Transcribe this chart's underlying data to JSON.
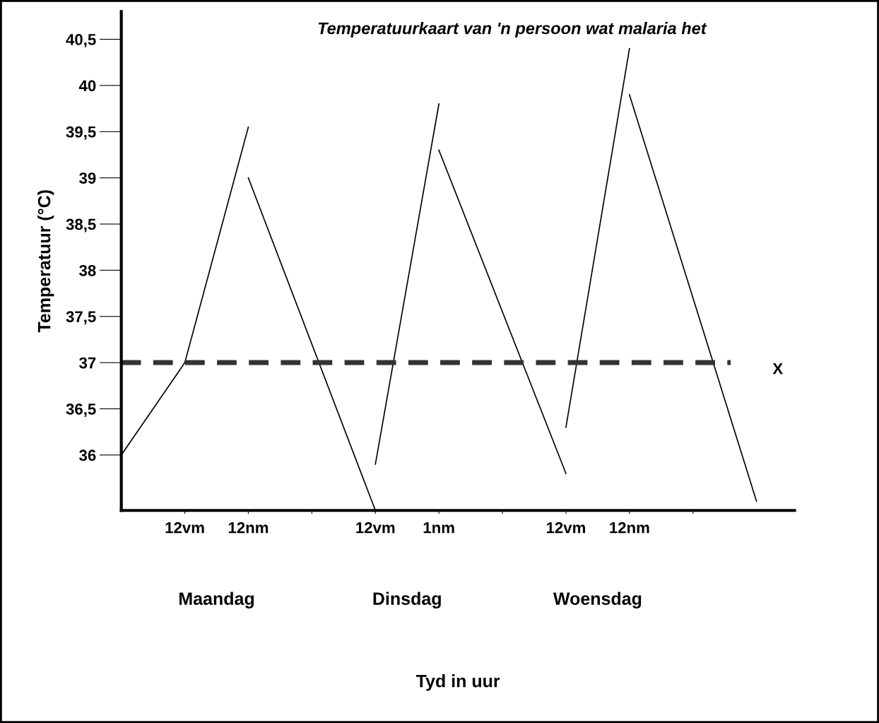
{
  "chart_data": {
    "type": "line",
    "title": "Temperatuurkaart van 'n persoon wat malaria het",
    "ylabel": "Temperatuur (°C)",
    "categories": [
      null,
      "12vm",
      "12nm",
      null,
      "12vm",
      "1nm",
      null,
      "12vm",
      "12nm",
      null,
      null
    ],
    "series": [
      {
        "color": "#000000",
        "values": [
          36.0,
          37.0,
          39.55,
          null,
          null,
          null,
          null,
          null,
          null,
          null,
          null
        ]
      },
      {
        "color": "#000000",
        "values": [
          null,
          null,
          39.0,
          null,
          35.4,
          null,
          null,
          null,
          null,
          null,
          null
        ]
      },
      {
        "color": "#000000",
        "values": [
          null,
          null,
          null,
          null,
          35.9,
          39.8,
          null,
          null,
          null,
          null,
          null
        ]
      },
      {
        "color": "#000000",
        "values": [
          null,
          null,
          null,
          null,
          null,
          39.3,
          null,
          35.8,
          null,
          null,
          null
        ]
      },
      {
        "color": "#000000",
        "values": [
          null,
          null,
          null,
          null,
          null,
          null,
          null,
          36.3,
          40.4,
          null,
          null
        ]
      },
      {
        "color": "#000000",
        "values": [
          null,
          null,
          null,
          null,
          null,
          null,
          null,
          null,
          39.9,
          null,
          35.5
        ]
      }
    ],
    "annotations": [
      "Maandag",
      "Dinsdag",
      "Woensdag",
      "Tyd in uur"
    ],
    "ylim": [
      35.4,
      40.8
    ],
    "yticks": [
      {
        "value": 36,
        "label": "36"
      },
      {
        "value": 36.5,
        "label": "36,5"
      },
      {
        "value": 37,
        "label": "37"
      },
      {
        "value": 37.5,
        "label": "37,5"
      },
      {
        "value": 38,
        "label": "38"
      },
      {
        "value": 38.5,
        "label": "38,5"
      },
      {
        "value": 39,
        "label": "39"
      },
      {
        "value": 39.5,
        "label": "39,5"
      },
      {
        "value": 40,
        "label": "40"
      },
      {
        "value": 40.5,
        "label": "40,5"
      }
    ],
    "ref_lines": [
      {
        "axis": "y",
        "value": 37,
        "label": "X",
        "color": "#333333",
        "line_style": "dashed"
      }
    ],
    "grid": false,
    "legend": false,
    "marker": "none",
    "line_style": "solid"
  }
}
